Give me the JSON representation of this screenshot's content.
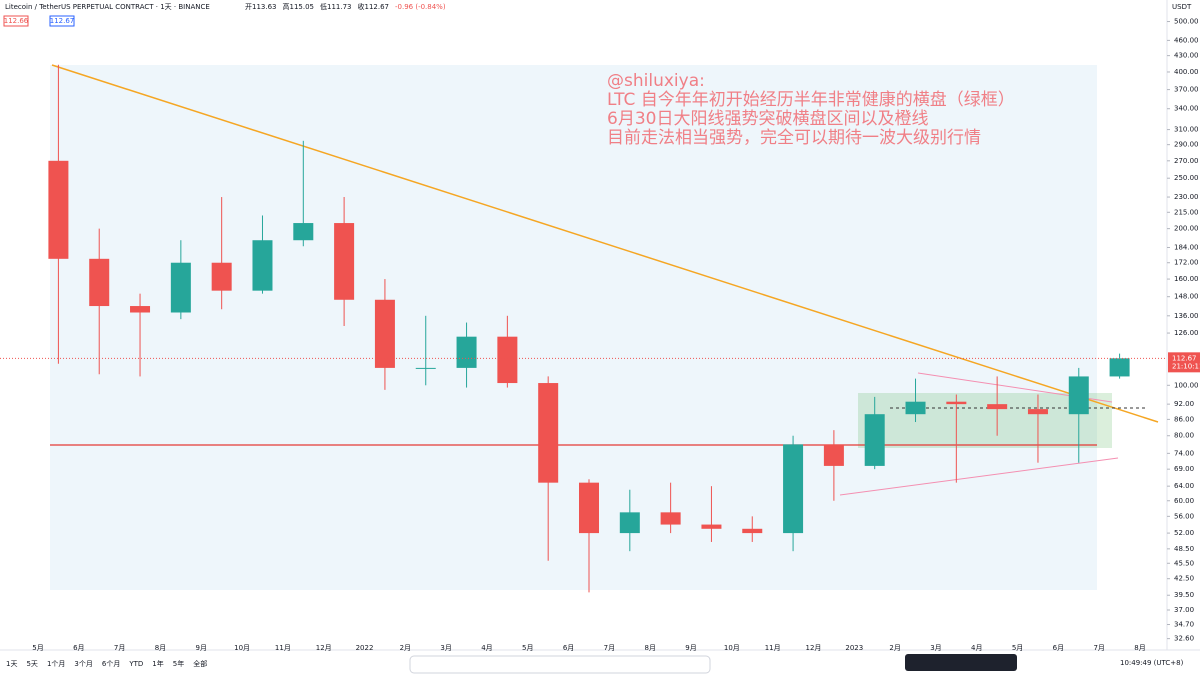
{
  "header": {
    "symbol": "Litecoin / TetherUS PERPETUAL CONTRACT · 1天 · BINANCE",
    "ohlc": [
      "开113.63",
      "高115.05",
      "低111.73",
      "收112.67",
      "-0.96 (-0.84%)"
    ],
    "bid": "112.66",
    "ask": "112.67",
    "currency": "USDT"
  },
  "annotation": [
    "@shiluxiya:",
    "LTC 自今年年初开始经历半年非常健康的横盘（绿框）",
    "6月30日大阳线强势突破横盘区间以及橙线",
    "目前走法相当强势，完全可以期待一波大级别行情"
  ],
  "chart_data": {
    "type": "candlestick",
    "log_scale": true,
    "categories": [
      "5月",
      "6月",
      "7月",
      "8月",
      "9月",
      "10月",
      "11月",
      "12月",
      "2022",
      "2月",
      "3月",
      "4月",
      "5月",
      "6月",
      "7月",
      "8月",
      "9月",
      "10月",
      "11月",
      "12月",
      "2023",
      "2月",
      "3月",
      "4月",
      "5月",
      "6月",
      "7月",
      "8月"
    ],
    "open": [
      270,
      175,
      142,
      138,
      172,
      152,
      190,
      205,
      146,
      108,
      108,
      124,
      101,
      65,
      52,
      57,
      54,
      53,
      52,
      77,
      70,
      88,
      93,
      92,
      90,
      88,
      104,
      null
    ],
    "high": [
      413,
      200,
      150,
      190,
      230,
      212,
      295,
      230,
      160,
      136,
      132,
      136,
      104,
      66,
      63,
      65,
      64,
      56,
      80,
      82,
      95,
      103,
      96,
      104,
      96,
      108,
      115.05,
      null
    ],
    "low": [
      110,
      105,
      104,
      134,
      140,
      150,
      185,
      130,
      98,
      100,
      99,
      99,
      46,
      40,
      48,
      52,
      50,
      50,
      48,
      60,
      69,
      85,
      65,
      80,
      71,
      71,
      103,
      null
    ],
    "close": [
      175,
      142,
      138,
      172,
      152,
      190,
      205,
      146,
      108,
      108,
      124,
      101,
      65,
      52,
      57,
      54,
      53,
      52,
      77,
      70,
      88,
      93,
      92,
      90,
      88,
      104,
      112.67,
      null
    ],
    "up_color": "#26a69a",
    "down_color": "#ef5350",
    "ylim": [
      31,
      550
    ],
    "yticks": [
      {
        "value": 500,
        "label": "500.00"
      },
      {
        "value": 460,
        "label": "460.00"
      },
      {
        "value": 430,
        "label": "430.00"
      },
      {
        "value": 400,
        "label": "400.00"
      },
      {
        "value": 370,
        "label": "370.00"
      },
      {
        "value": 340,
        "label": "340.00"
      },
      {
        "value": 310,
        "label": "310.00"
      },
      {
        "value": 290,
        "label": "290.00"
      },
      {
        "value": 270,
        "label": "270.00"
      },
      {
        "value": 250,
        "label": "250.00"
      },
      {
        "value": 230,
        "label": "230.00"
      },
      {
        "value": 215,
        "label": "215.00"
      },
      {
        "value": 200,
        "label": "200.00"
      },
      {
        "value": 184,
        "label": "184.00"
      },
      {
        "value": 172,
        "label": "172.00"
      },
      {
        "value": 160,
        "label": "160.00"
      },
      {
        "value": 148,
        "label": "148.00"
      },
      {
        "value": 136,
        "label": "136.00"
      },
      {
        "value": 126,
        "label": "126.00"
      },
      {
        "value": 100,
        "label": "100.00"
      },
      {
        "value": 92,
        "label": "92.00"
      },
      {
        "value": 86,
        "label": "86.00"
      },
      {
        "value": 80,
        "label": "80.00"
      },
      {
        "value": 74,
        "label": "74.00"
      },
      {
        "value": 69,
        "label": "69.00"
      },
      {
        "value": 64,
        "label": "64.00"
      },
      {
        "value": 60,
        "label": "60.00"
      },
      {
        "value": 56,
        "label": "56.00"
      },
      {
        "value": 52,
        "label": "52.00"
      },
      {
        "value": 48.5,
        "label": "48.50"
      },
      {
        "value": 45.5,
        "label": "45.50"
      },
      {
        "value": 42.5,
        "label": "42.50"
      },
      {
        "value": 39.5,
        "label": "39.50"
      },
      {
        "value": 37,
        "label": "37.00"
      },
      {
        "value": 34.7,
        "label": "34.70"
      },
      {
        "value": 32.6,
        "label": "32.60"
      }
    ],
    "last_price": 112.67,
    "countdown": "21:10:11"
  },
  "footer": {
    "ranges": [
      "1天",
      "5天",
      "1个月",
      "3个月",
      "6个月",
      "YTD",
      "1年",
      "5年",
      "全部"
    ],
    "clock": "10:49:49 (UTC+8)"
  }
}
